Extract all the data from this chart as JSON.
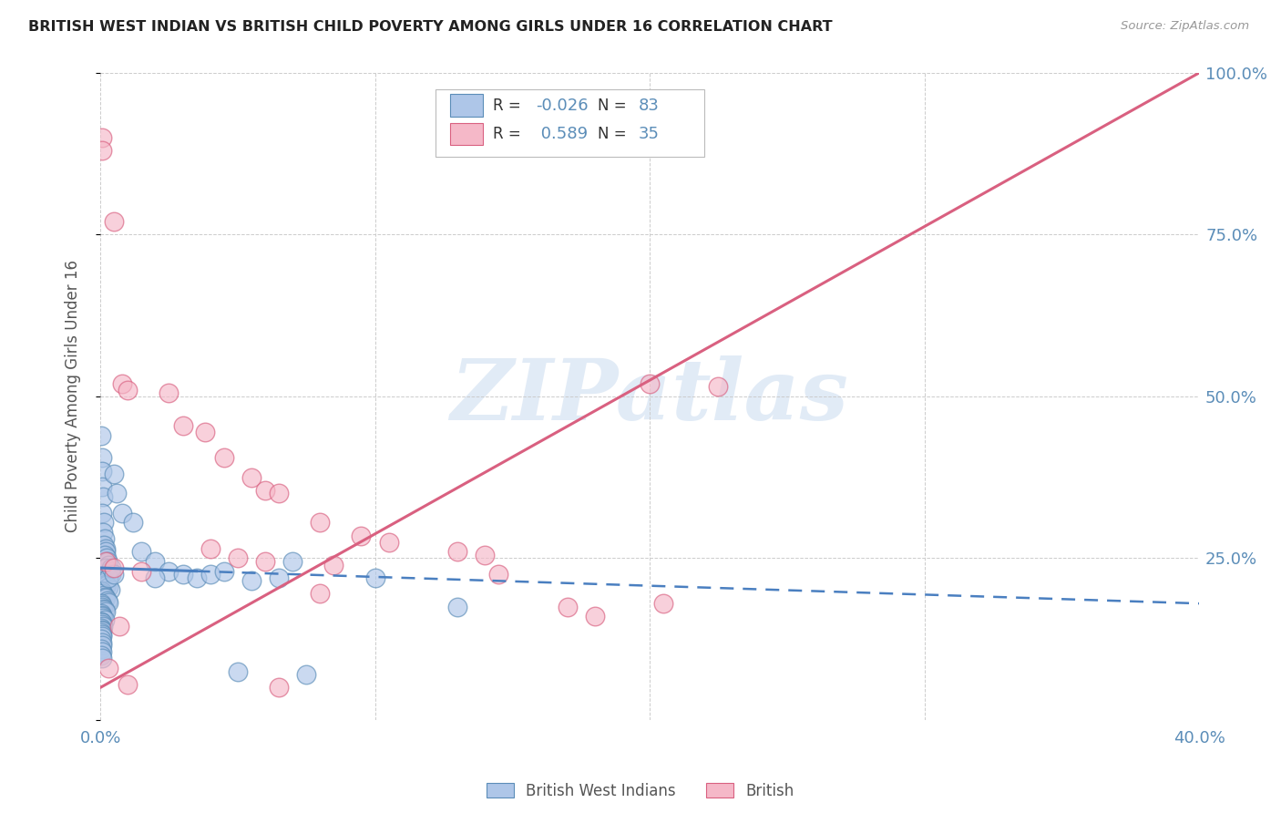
{
  "title": "BRITISH WEST INDIAN VS BRITISH CHILD POVERTY AMONG GIRLS UNDER 16 CORRELATION CHART",
  "source": "Source: ZipAtlas.com",
  "ylabel": "Child Poverty Among Girls Under 16",
  "xlim": [
    0.0,
    40.0
  ],
  "ylim": [
    0.0,
    100.0
  ],
  "blue_fill": "#aec6e8",
  "blue_edge": "#5b8db8",
  "pink_fill": "#f5b8c8",
  "pink_edge": "#d96080",
  "blue_line_color": "#4a7fc0",
  "pink_line_color": "#d96080",
  "text_color": "#5b8db8",
  "watermark": "ZIPatlas",
  "blue_dots": [
    [
      0.02,
      44.0
    ],
    [
      0.05,
      40.5
    ],
    [
      0.05,
      38.5
    ],
    [
      0.07,
      36.0
    ],
    [
      0.1,
      34.5
    ],
    [
      0.08,
      32.0
    ],
    [
      0.12,
      30.5
    ],
    [
      0.1,
      29.0
    ],
    [
      0.15,
      28.0
    ],
    [
      0.12,
      27.0
    ],
    [
      0.18,
      26.5
    ],
    [
      0.2,
      26.0
    ],
    [
      0.15,
      25.5
    ],
    [
      0.22,
      25.0
    ],
    [
      0.25,
      24.5
    ],
    [
      0.3,
      24.0
    ],
    [
      0.2,
      23.5
    ],
    [
      0.35,
      23.0
    ],
    [
      0.28,
      22.5
    ],
    [
      0.4,
      22.5
    ],
    [
      0.05,
      22.0
    ],
    [
      0.08,
      21.8
    ],
    [
      0.1,
      21.5
    ],
    [
      0.15,
      21.2
    ],
    [
      0.18,
      21.0
    ],
    [
      0.22,
      20.8
    ],
    [
      0.28,
      20.5
    ],
    [
      0.35,
      20.2
    ],
    [
      0.02,
      20.0
    ],
    [
      0.05,
      19.8
    ],
    [
      0.08,
      19.5
    ],
    [
      0.12,
      19.3
    ],
    [
      0.15,
      19.0
    ],
    [
      0.2,
      18.8
    ],
    [
      0.25,
      18.5
    ],
    [
      0.3,
      18.2
    ],
    [
      0.02,
      18.0
    ],
    [
      0.05,
      17.8
    ],
    [
      0.08,
      17.5
    ],
    [
      0.1,
      17.2
    ],
    [
      0.15,
      17.0
    ],
    [
      0.2,
      16.8
    ],
    [
      0.02,
      16.5
    ],
    [
      0.05,
      16.2
    ],
    [
      0.08,
      16.0
    ],
    [
      0.1,
      15.8
    ],
    [
      0.15,
      15.5
    ],
    [
      0.02,
      15.2
    ],
    [
      0.05,
      15.0
    ],
    [
      0.08,
      14.8
    ],
    [
      0.1,
      14.5
    ],
    [
      0.02,
      14.2
    ],
    [
      0.05,
      14.0
    ],
    [
      0.08,
      13.8
    ],
    [
      0.02,
      13.5
    ],
    [
      0.05,
      13.2
    ],
    [
      0.08,
      13.0
    ],
    [
      0.02,
      12.5
    ],
    [
      0.05,
      12.0
    ],
    [
      0.08,
      11.5
    ],
    [
      0.02,
      11.0
    ],
    [
      0.05,
      10.5
    ],
    [
      0.02,
      10.0
    ],
    [
      0.05,
      9.5
    ],
    [
      0.8,
      32.0
    ],
    [
      1.2,
      30.5
    ],
    [
      1.5,
      26.0
    ],
    [
      2.0,
      24.5
    ],
    [
      2.5,
      23.0
    ],
    [
      3.0,
      22.5
    ],
    [
      3.5,
      22.0
    ],
    [
      4.0,
      22.5
    ],
    [
      4.5,
      23.0
    ],
    [
      0.6,
      35.0
    ],
    [
      0.5,
      38.0
    ],
    [
      5.5,
      21.5
    ],
    [
      7.0,
      24.5
    ],
    [
      6.5,
      22.0
    ],
    [
      10.0,
      22.0
    ],
    [
      13.0,
      17.5
    ],
    [
      5.0,
      7.5
    ],
    [
      7.5,
      7.0
    ],
    [
      2.0,
      22.0
    ],
    [
      0.3,
      22.0
    ],
    [
      0.4,
      23.5
    ],
    [
      0.5,
      22.5
    ]
  ],
  "pink_dots": [
    [
      0.05,
      90.0
    ],
    [
      0.08,
      88.0
    ],
    [
      0.5,
      77.0
    ],
    [
      0.8,
      52.0
    ],
    [
      1.0,
      51.0
    ],
    [
      2.5,
      50.5
    ],
    [
      3.0,
      45.5
    ],
    [
      3.8,
      44.5
    ],
    [
      4.5,
      40.5
    ],
    [
      5.5,
      37.5
    ],
    [
      6.0,
      35.5
    ],
    [
      6.5,
      35.0
    ],
    [
      8.0,
      30.5
    ],
    [
      9.5,
      28.5
    ],
    [
      10.5,
      27.5
    ],
    [
      13.0,
      26.0
    ],
    [
      14.0,
      25.5
    ],
    [
      20.0,
      52.0
    ],
    [
      22.5,
      51.5
    ],
    [
      4.0,
      26.5
    ],
    [
      5.0,
      25.0
    ],
    [
      6.0,
      24.5
    ],
    [
      8.5,
      24.0
    ],
    [
      14.5,
      22.5
    ],
    [
      17.0,
      17.5
    ],
    [
      0.2,
      24.5
    ],
    [
      0.5,
      23.5
    ],
    [
      1.5,
      23.0
    ],
    [
      8.0,
      19.5
    ],
    [
      20.5,
      18.0
    ],
    [
      0.3,
      8.0
    ],
    [
      1.0,
      5.5
    ],
    [
      6.5,
      5.0
    ],
    [
      18.0,
      16.0
    ],
    [
      0.7,
      14.5
    ]
  ],
  "blue_trend_x": [
    0.0,
    40.0
  ],
  "blue_trend_y": [
    23.5,
    18.0
  ],
  "pink_trend_x": [
    0.0,
    40.0
  ],
  "pink_trend_y": [
    5.0,
    100.0
  ]
}
